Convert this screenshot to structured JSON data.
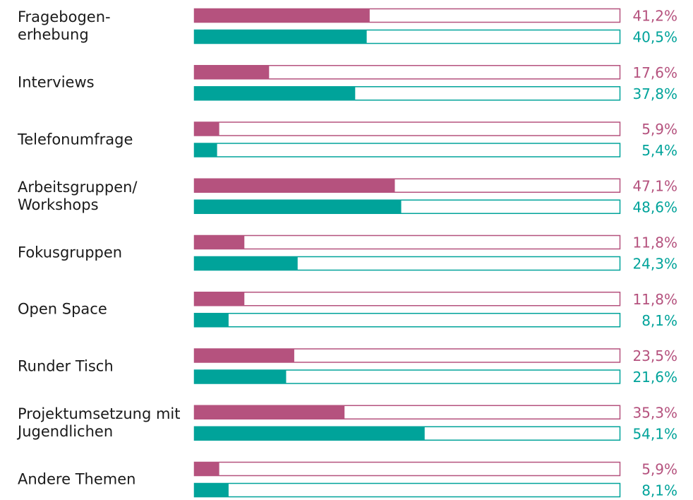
{
  "chart_data": {
    "type": "bar",
    "orientation": "horizontal",
    "categories": [
      "Fragebogen-\nerhebung",
      "Interviews",
      "Telefonumfrage",
      "Arbeitsgruppen/\nWorkshops",
      "Fokusgruppen",
      "Open Space",
      "Runder Tisch",
      "Projektumsetzung mit\nJugendlichen",
      "Andere Themen"
    ],
    "series": [
      {
        "color": "#b5527e",
        "values": [
          41.2,
          17.6,
          5.9,
          47.1,
          11.8,
          11.8,
          23.5,
          35.3,
          5.9
        ],
        "value_labels": [
          "41,2%",
          "17,6%",
          "5,9%",
          "47,1%",
          "11,8%",
          "11,8%",
          "23,5%",
          "35,3%",
          "5,9%"
        ]
      },
      {
        "color": "#00a39a",
        "values": [
          40.5,
          37.8,
          5.4,
          48.6,
          24.3,
          8.1,
          21.6,
          54.1,
          8.1
        ],
        "value_labels": [
          "40,5%",
          "37,8%",
          "5,4%",
          "48,6%",
          "24,3%",
          "8,1%",
          "21,6%",
          "54,1%",
          "8,1%"
        ]
      }
    ],
    "xlim": [
      0,
      100
    ]
  }
}
